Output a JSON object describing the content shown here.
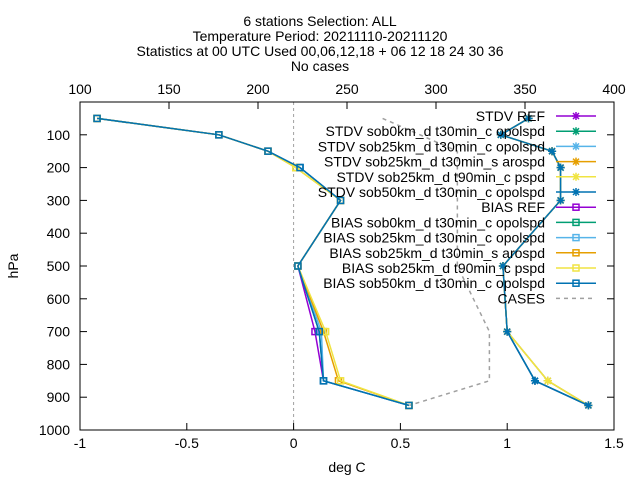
{
  "chart_data": {
    "type": "line",
    "title_lines": [
      "6 stations Selection: ALL",
      "Temperature  Period: 20211110-20211120",
      "Statistics at 00 UTC  Used 00,06,12,18 + 06 12 18 24 30 36",
      "No cases"
    ],
    "xlabel": "deg C",
    "ylabel": "hPa",
    "xlim": [
      -1,
      1.5
    ],
    "ylim": [
      1000,
      0
    ],
    "x_ticks": [
      "-1",
      "-0.5",
      "0",
      "0.5",
      "1",
      "1.5"
    ],
    "x2lim": [
      100,
      400
    ],
    "x2_ticks": [
      "100",
      "150",
      "200",
      "250",
      "300",
      "350",
      "400"
    ],
    "y_ticks": [
      "100",
      "200",
      "300",
      "400",
      "500",
      "600",
      "700",
      "800",
      "900",
      "1000"
    ],
    "legend_position": "top-right",
    "levels": [
      50,
      100,
      150,
      200,
      300,
      500,
      700,
      850,
      925
    ],
    "series": [
      {
        "name": "STDV REF",
        "color": "#9400d3",
        "marker": "star",
        "values": [
          1.1,
          0.97,
          1.21,
          1.25,
          1.25,
          0.98,
          1.0,
          1.13,
          1.38
        ]
      },
      {
        "name": "STDV sob0km_d t30min_c opolspd",
        "color": "#009e73",
        "marker": "star",
        "values": [
          1.1,
          0.97,
          1.21,
          1.25,
          1.25,
          0.98,
          1.0,
          1.13,
          1.38
        ]
      },
      {
        "name": "STDV sob25km_d t30min_c opolspd",
        "color": "#56b4e9",
        "marker": "star",
        "values": [
          1.1,
          0.97,
          1.21,
          1.25,
          1.25,
          0.98,
          1.0,
          1.19,
          1.38
        ]
      },
      {
        "name": "STDV sob25km_d t30min_s arospd",
        "color": "#e69f00",
        "marker": "star",
        "values": [
          1.1,
          0.97,
          1.21,
          1.25,
          1.25,
          0.98,
          1.0,
          1.19,
          1.38
        ]
      },
      {
        "name": "STDV sob25km_d t90min_c pspd",
        "color": "#f0e442",
        "marker": "star",
        "values": [
          1.1,
          0.97,
          1.21,
          1.25,
          1.25,
          0.98,
          1.0,
          1.19,
          1.38
        ]
      },
      {
        "name": "STDV sob50km_d t30min_c opolspd",
        "color": "#0072b2",
        "marker": "star",
        "values": [
          1.1,
          0.97,
          1.21,
          1.25,
          1.25,
          0.98,
          1.0,
          1.13,
          1.38
        ]
      },
      {
        "name": "BIAS REF",
        "color": "#9400d3",
        "marker": "square",
        "values": [
          -0.92,
          -0.35,
          -0.12,
          0.03,
          0.22,
          0.02,
          0.1,
          0.14,
          0.54
        ]
      },
      {
        "name": "BIAS sob0km_d t30min_c opolspd",
        "color": "#009e73",
        "marker": "square",
        "values": [
          -0.92,
          -0.35,
          -0.12,
          0.03,
          0.22,
          0.02,
          0.12,
          0.14,
          0.54
        ]
      },
      {
        "name": "BIAS sob25km_d t30min_c opolspd",
        "color": "#56b4e9",
        "marker": "square",
        "values": [
          -0.92,
          -0.35,
          -0.12,
          0.03,
          0.22,
          0.02,
          0.13,
          0.14,
          0.54
        ]
      },
      {
        "name": "BIAS sob25km_d t30min_s arospd",
        "color": "#e69f00",
        "marker": "square",
        "values": [
          -0.92,
          -0.35,
          -0.12,
          0.01,
          0.22,
          0.02,
          0.14,
          0.21,
          0.54
        ]
      },
      {
        "name": "BIAS sob25km_d t90min_c pspd",
        "color": "#f0e442",
        "marker": "square",
        "values": [
          -0.92,
          -0.35,
          -0.12,
          0.01,
          0.22,
          0.02,
          0.15,
          0.22,
          0.54
        ]
      },
      {
        "name": "BIAS sob50km_d t30min_c opolspd",
        "color": "#0072b2",
        "marker": "square",
        "values": [
          -0.92,
          -0.35,
          -0.12,
          0.03,
          0.22,
          0.02,
          0.12,
          0.14,
          0.54
        ]
      }
    ],
    "cases": {
      "name": "CASES",
      "color": "#a0a0a0",
      "points": [
        [
          270,
          50
        ],
        [
          312,
          150
        ],
        [
          312,
          500
        ],
        [
          330,
          700
        ],
        [
          330,
          850
        ],
        [
          285,
          925
        ]
      ]
    }
  }
}
